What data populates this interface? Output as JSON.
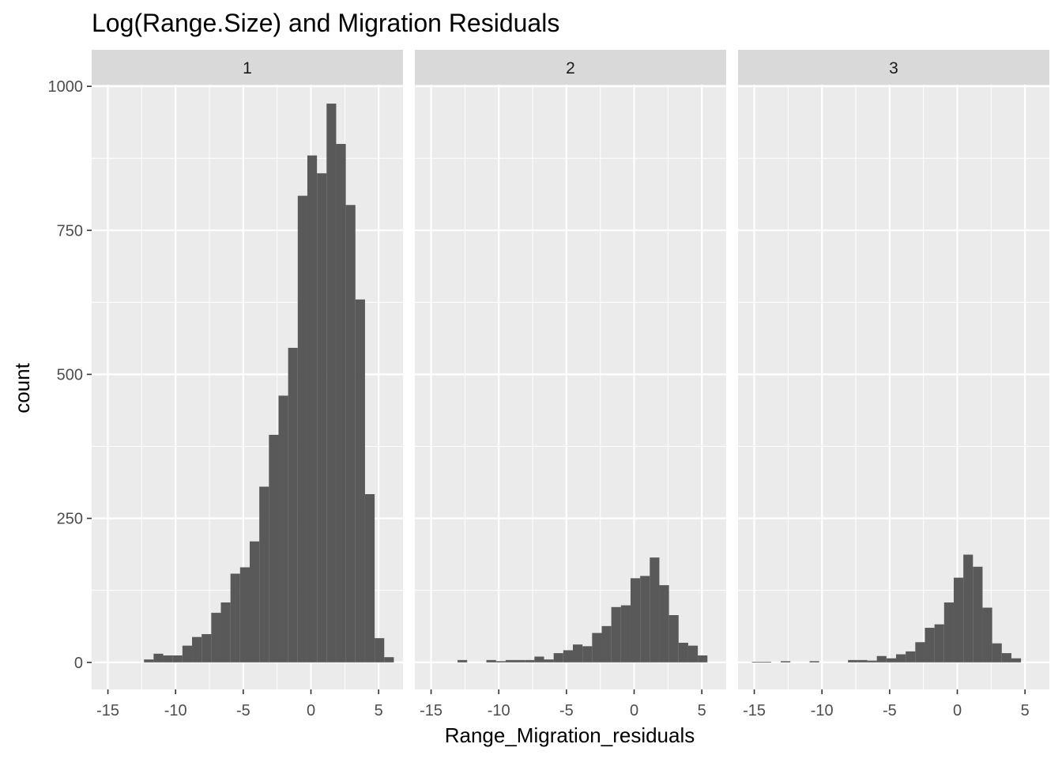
{
  "chart_data": {
    "type": "bar",
    "title": "Log(Range.Size) and Migration Residuals",
    "xlabel": "Range_Migration_residuals",
    "ylabel": "count",
    "xlim": [
      -16.2,
      6.8
    ],
    "ylim": [
      -47,
      1003
    ],
    "x_ticks": [
      -15,
      -10,
      -5,
      0,
      5
    ],
    "x_tick_labels": [
      "-15",
      "-10",
      "-5",
      "0",
      "5"
    ],
    "y_ticks": [
      0,
      250,
      500,
      750,
      1000
    ],
    "y_tick_labels": [
      "0",
      "250",
      "500",
      "750",
      "1000"
    ],
    "grid": true,
    "bin_width": 0.71,
    "colors": {
      "bar": "#595959",
      "panel": "#ebebeb",
      "strip": "#d9d9d9",
      "grid": "#ffffff",
      "tick": "#333333"
    },
    "facets": [
      {
        "label": "1",
        "bars": [
          {
            "x": -11.98,
            "count": 5
          },
          {
            "x": -11.27,
            "count": 15
          },
          {
            "x": -10.56,
            "count": 12
          },
          {
            "x": -9.85,
            "count": 12
          },
          {
            "x": -9.14,
            "count": 29
          },
          {
            "x": -8.43,
            "count": 44
          },
          {
            "x": -7.72,
            "count": 49
          },
          {
            "x": -7.01,
            "count": 86
          },
          {
            "x": -6.3,
            "count": 104
          },
          {
            "x": -5.59,
            "count": 154
          },
          {
            "x": -4.88,
            "count": 165
          },
          {
            "x": -4.17,
            "count": 210
          },
          {
            "x": -3.46,
            "count": 305
          },
          {
            "x": -2.75,
            "count": 395
          },
          {
            "x": -2.04,
            "count": 463
          },
          {
            "x": -1.33,
            "count": 546
          },
          {
            "x": -0.62,
            "count": 810
          },
          {
            "x": 0.09,
            "count": 880
          },
          {
            "x": 0.8,
            "count": 849
          },
          {
            "x": 1.51,
            "count": 970
          },
          {
            "x": 2.22,
            "count": 900
          },
          {
            "x": 2.93,
            "count": 794
          },
          {
            "x": 3.64,
            "count": 630
          },
          {
            "x": 4.35,
            "count": 292
          },
          {
            "x": 5.06,
            "count": 42
          },
          {
            "x": 5.77,
            "count": 9
          }
        ]
      },
      {
        "label": "2",
        "bars": [
          {
            "x": -12.69,
            "count": 4
          },
          {
            "x": -10.56,
            "count": 4
          },
          {
            "x": -9.85,
            "count": 2
          },
          {
            "x": -9.14,
            "count": 4
          },
          {
            "x": -8.43,
            "count": 4
          },
          {
            "x": -7.72,
            "count": 4
          },
          {
            "x": -7.01,
            "count": 10
          },
          {
            "x": -6.3,
            "count": 5
          },
          {
            "x": -5.59,
            "count": 16
          },
          {
            "x": -4.88,
            "count": 21
          },
          {
            "x": -4.17,
            "count": 31
          },
          {
            "x": -3.46,
            "count": 28
          },
          {
            "x": -2.75,
            "count": 51
          },
          {
            "x": -2.04,
            "count": 63
          },
          {
            "x": -1.33,
            "count": 96
          },
          {
            "x": -0.62,
            "count": 99
          },
          {
            "x": 0.09,
            "count": 146
          },
          {
            "x": 0.8,
            "count": 150
          },
          {
            "x": 1.51,
            "count": 182
          },
          {
            "x": 2.22,
            "count": 134
          },
          {
            "x": 2.93,
            "count": 82
          },
          {
            "x": 3.64,
            "count": 34
          },
          {
            "x": 4.35,
            "count": 29
          },
          {
            "x": 5.06,
            "count": 12
          }
        ]
      },
      {
        "label": "3",
        "bars": [
          {
            "x": -14.82,
            "count": 1
          },
          {
            "x": -14.11,
            "count": 1
          },
          {
            "x": -12.69,
            "count": 2
          },
          {
            "x": -10.56,
            "count": 2
          },
          {
            "x": -7.72,
            "count": 4
          },
          {
            "x": -7.01,
            "count": 4
          },
          {
            "x": -6.3,
            "count": 3
          },
          {
            "x": -5.59,
            "count": 11
          },
          {
            "x": -4.88,
            "count": 7
          },
          {
            "x": -4.17,
            "count": 14
          },
          {
            "x": -3.46,
            "count": 19
          },
          {
            "x": -2.75,
            "count": 35
          },
          {
            "x": -2.04,
            "count": 60
          },
          {
            "x": -1.33,
            "count": 66
          },
          {
            "x": -0.62,
            "count": 104
          },
          {
            "x": 0.09,
            "count": 147
          },
          {
            "x": 0.8,
            "count": 187
          },
          {
            "x": 1.51,
            "count": 166
          },
          {
            "x": 2.22,
            "count": 95
          },
          {
            "x": 2.93,
            "count": 33
          },
          {
            "x": 3.64,
            "count": 16
          },
          {
            "x": 4.35,
            "count": 7
          }
        ]
      }
    ]
  }
}
